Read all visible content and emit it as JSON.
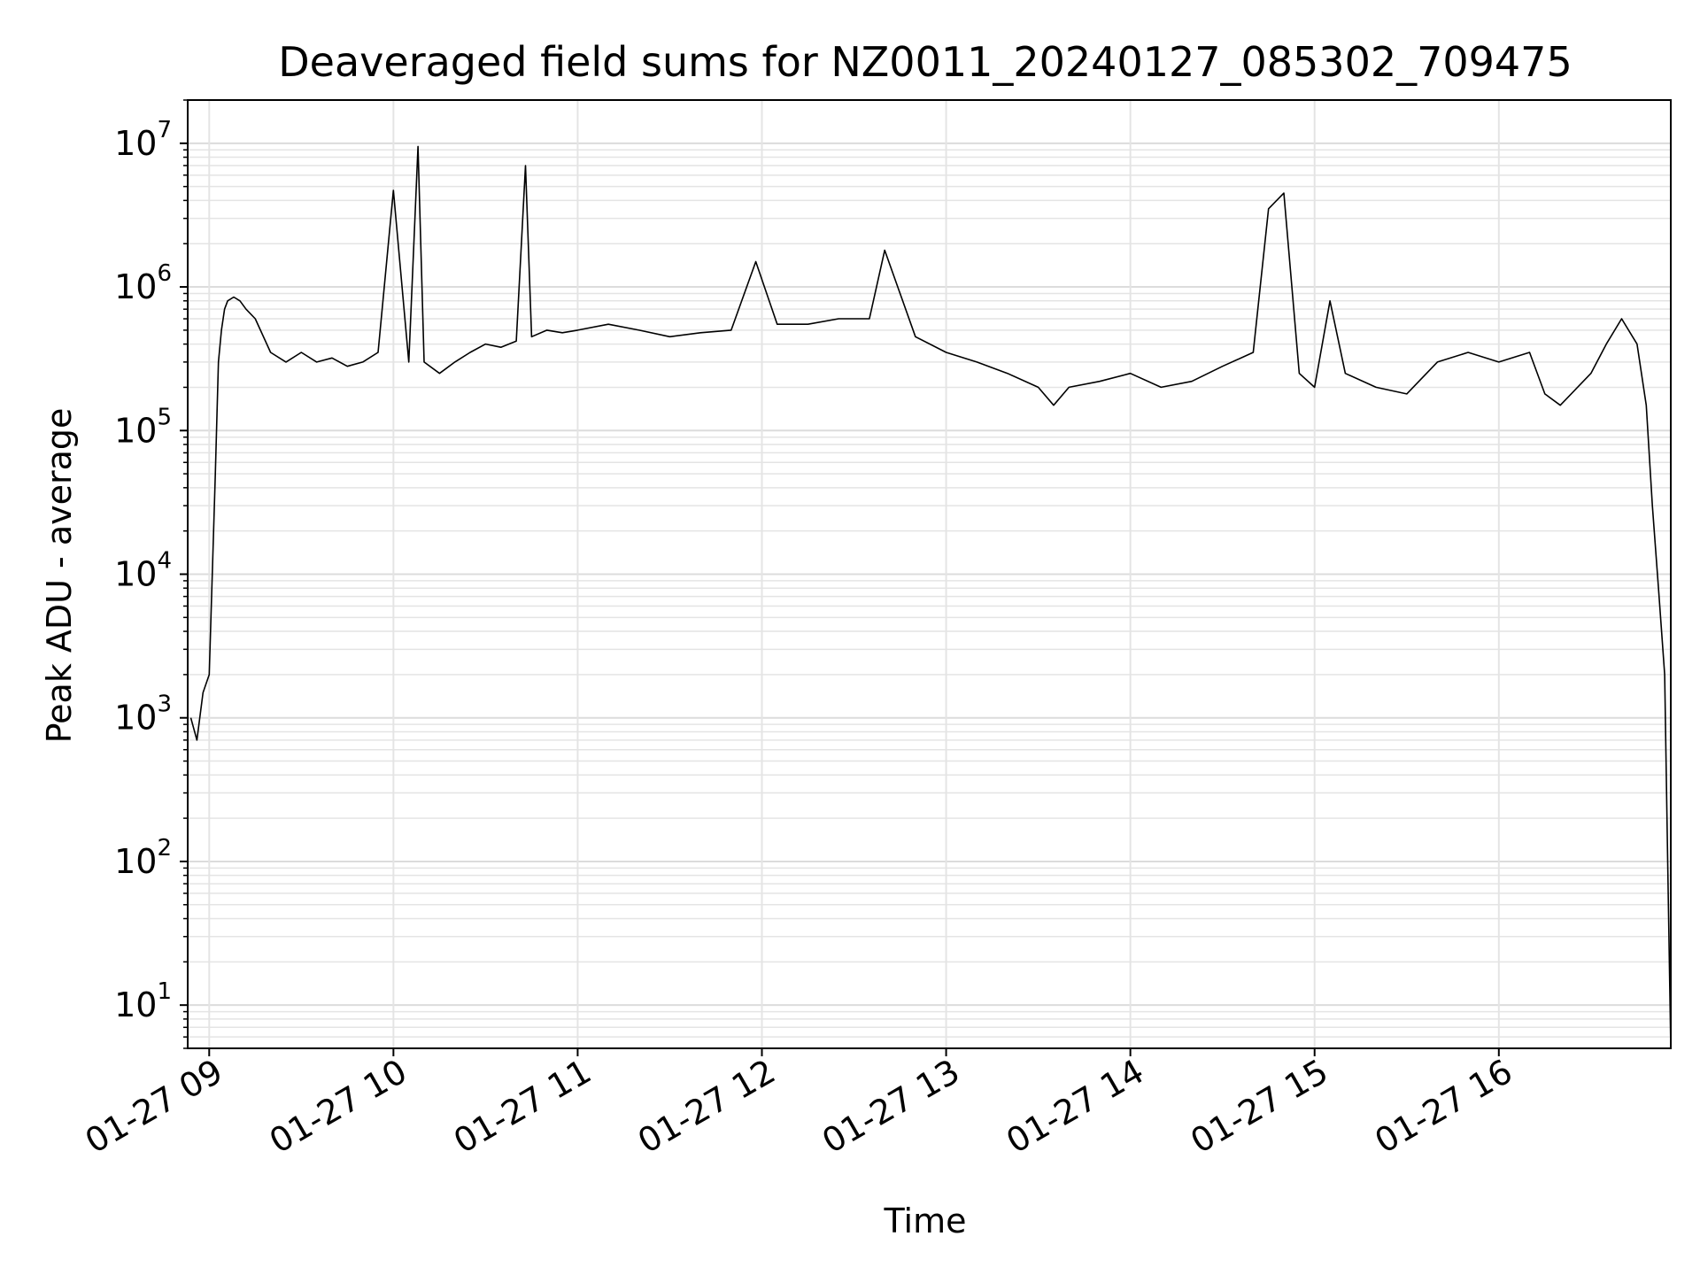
{
  "chart_data": {
    "type": "line",
    "title": "Deaveraged field sums for NZ0011_20240127_085302_709475",
    "xlabel": "Time",
    "ylabel": "Peak ADU - average",
    "y_scale": "log",
    "ylim": [
      5,
      20000000
    ],
    "xlim": [
      "2024-01-27 08:53",
      "2024-01-27 16:56"
    ],
    "grid": true,
    "x_ticks": [
      {
        "value": "2024-01-27 09:00",
        "label": "01-27 09"
      },
      {
        "value": "2024-01-27 10:00",
        "label": "01-27 10"
      },
      {
        "value": "2024-01-27 11:00",
        "label": "01-27 11"
      },
      {
        "value": "2024-01-27 12:00",
        "label": "01-27 12"
      },
      {
        "value": "2024-01-27 13:00",
        "label": "01-27 13"
      },
      {
        "value": "2024-01-27 14:00",
        "label": "01-27 14"
      },
      {
        "value": "2024-01-27 15:00",
        "label": "01-27 15"
      },
      {
        "value": "2024-01-27 16:00",
        "label": "01-27 16"
      }
    ],
    "y_ticks": [
      {
        "value": 10,
        "base": "10",
        "exp": "1"
      },
      {
        "value": 100,
        "base": "10",
        "exp": "2"
      },
      {
        "value": 1000,
        "base": "10",
        "exp": "3"
      },
      {
        "value": 10000,
        "base": "10",
        "exp": "4"
      },
      {
        "value": 100000,
        "base": "10",
        "exp": "5"
      },
      {
        "value": 1000000,
        "base": "10",
        "exp": "6"
      },
      {
        "value": 10000000,
        "base": "10",
        "exp": "7"
      }
    ],
    "series": [
      {
        "color": "#000000",
        "x": [
          "2024-01-27 08:54",
          "2024-01-27 08:56",
          "2024-01-27 08:58",
          "2024-01-27 09:00",
          "2024-01-27 09:02",
          "2024-01-27 09:03",
          "2024-01-27 09:04",
          "2024-01-27 09:05",
          "2024-01-27 09:06",
          "2024-01-27 09:08",
          "2024-01-27 09:10",
          "2024-01-27 09:12",
          "2024-01-27 09:15",
          "2024-01-27 09:20",
          "2024-01-27 09:25",
          "2024-01-27 09:30",
          "2024-01-27 09:35",
          "2024-01-27 09:40",
          "2024-01-27 09:45",
          "2024-01-27 09:50",
          "2024-01-27 09:55",
          "2024-01-27 10:00",
          "2024-01-27 10:05",
          "2024-01-27 10:08",
          "2024-01-27 10:10",
          "2024-01-27 10:15",
          "2024-01-27 10:20",
          "2024-01-27 10:25",
          "2024-01-27 10:30",
          "2024-01-27 10:35",
          "2024-01-27 10:40",
          "2024-01-27 10:43",
          "2024-01-27 10:45",
          "2024-01-27 10:50",
          "2024-01-27 10:55",
          "2024-01-27 11:00",
          "2024-01-27 11:10",
          "2024-01-27 11:20",
          "2024-01-27 11:30",
          "2024-01-27 11:40",
          "2024-01-27 11:50",
          "2024-01-27 11:58",
          "2024-01-27 12:05",
          "2024-01-27 12:15",
          "2024-01-27 12:25",
          "2024-01-27 12:35",
          "2024-01-27 12:40",
          "2024-01-27 12:50",
          "2024-01-27 13:00",
          "2024-01-27 13:10",
          "2024-01-27 13:20",
          "2024-01-27 13:30",
          "2024-01-27 13:35",
          "2024-01-27 13:40",
          "2024-01-27 13:50",
          "2024-01-27 14:00",
          "2024-01-27 14:10",
          "2024-01-27 14:20",
          "2024-01-27 14:30",
          "2024-01-27 14:40",
          "2024-01-27 14:45",
          "2024-01-27 14:50",
          "2024-01-27 14:55",
          "2024-01-27 15:00",
          "2024-01-27 15:05",
          "2024-01-27 15:10",
          "2024-01-27 15:20",
          "2024-01-27 15:30",
          "2024-01-27 15:40",
          "2024-01-27 15:50",
          "2024-01-27 16:00",
          "2024-01-27 16:10",
          "2024-01-27 16:15",
          "2024-01-27 16:20",
          "2024-01-27 16:30",
          "2024-01-27 16:35",
          "2024-01-27 16:40",
          "2024-01-27 16:45",
          "2024-01-27 16:48",
          "2024-01-27 16:50",
          "2024-01-27 16:52",
          "2024-01-27 16:54",
          "2024-01-27 16:55",
          "2024-01-27 16:56"
        ],
        "y": [
          1000,
          700,
          1500,
          2000,
          50000,
          300000,
          500000,
          700000,
          800000,
          850000,
          800000,
          700000,
          600000,
          350000,
          300000,
          350000,
          300000,
          320000,
          280000,
          300000,
          350000,
          4700000,
          300000,
          9500000,
          300000,
          250000,
          300000,
          350000,
          400000,
          380000,
          420000,
          7000000,
          450000,
          500000,
          480000,
          500000,
          550000,
          500000,
          450000,
          480000,
          500000,
          1500000,
          550000,
          550000,
          600000,
          600000,
          1800000,
          450000,
          350000,
          300000,
          250000,
          200000,
          150000,
          200000,
          220000,
          250000,
          200000,
          220000,
          280000,
          350000,
          3500000,
          4500000,
          250000,
          200000,
          800000,
          250000,
          200000,
          180000,
          300000,
          350000,
          300000,
          350000,
          180000,
          150000,
          250000,
          400000,
          600000,
          400000,
          150000,
          30000,
          8000,
          2000,
          100,
          5
        ]
      }
    ]
  }
}
